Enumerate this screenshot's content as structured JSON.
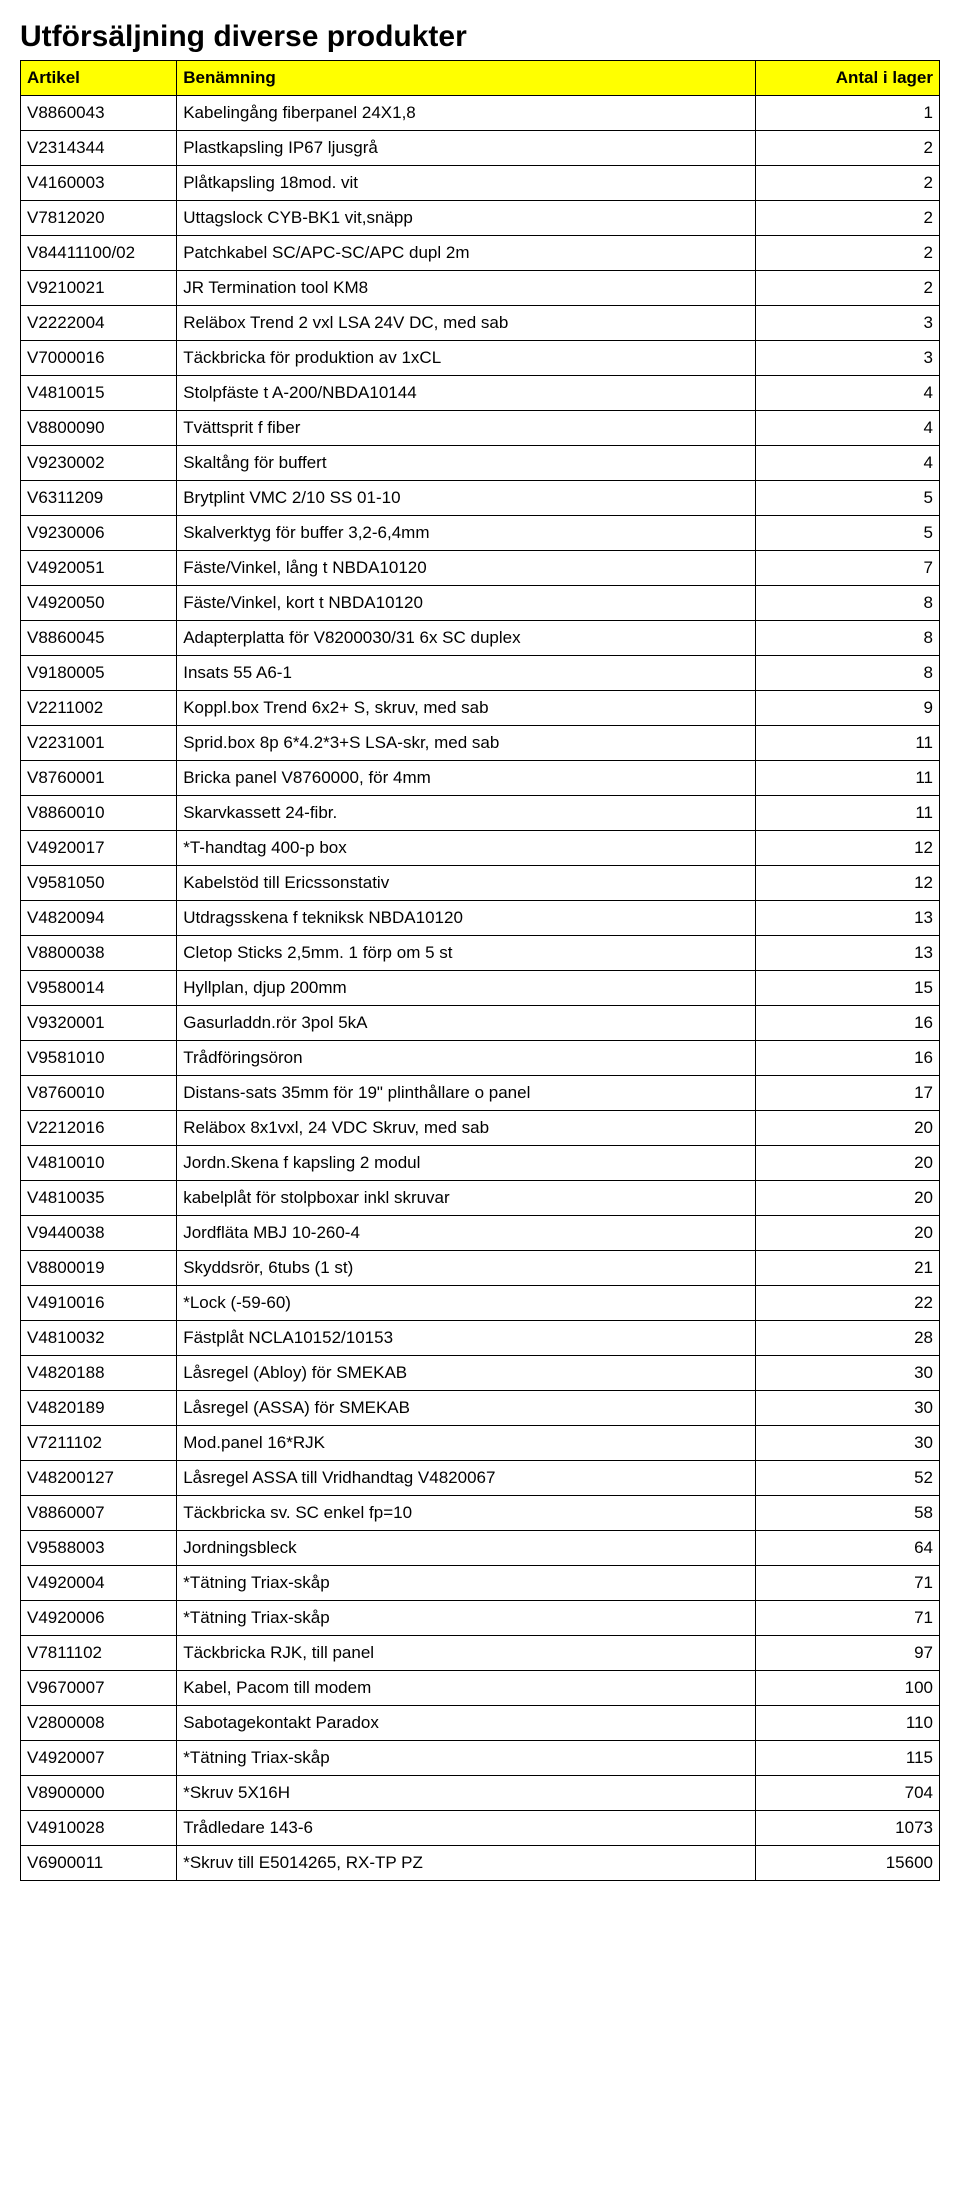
{
  "title": "Utförsäljning diverse produkter",
  "columns": [
    "Artikel",
    "Benämning",
    "Antal i lager"
  ],
  "column_align": [
    "left",
    "left",
    "right"
  ],
  "column_widths_pct": [
    17,
    63,
    20
  ],
  "header_bg": "#ffff00",
  "border_color": "#000000",
  "font_family": "Arial",
  "header_fontsize_pt": 13,
  "cell_fontsize_pt": 13,
  "title_fontsize_pt": 22,
  "rows": [
    [
      "V8860043",
      "Kabelingång fiberpanel 24X1,8",
      "1"
    ],
    [
      "V2314344",
      "Plastkapsling IP67 ljusgrå",
      "2"
    ],
    [
      "V4160003",
      "Plåtkapsling 18mod. vit",
      "2"
    ],
    [
      "V7812020",
      "Uttagslock CYB-BK1 vit,snäpp",
      "2"
    ],
    [
      "V84411100/02",
      "Patchkabel SC/APC-SC/APC dupl 2m",
      "2"
    ],
    [
      "V9210021",
      "JR Termination tool KM8",
      "2"
    ],
    [
      "V2222004",
      "Reläbox Trend 2 vxl LSA 24V DC, med sab",
      "3"
    ],
    [
      "V7000016",
      "Täckbricka för produktion av 1xCL",
      "3"
    ],
    [
      "V4810015",
      "Stolpfäste t A-200/NBDA10144",
      "4"
    ],
    [
      "V8800090",
      "Tvättsprit f fiber",
      "4"
    ],
    [
      "V9230002",
      "Skaltång för buffert",
      "4"
    ],
    [
      "V6311209",
      "Brytplint VMC 2/10 SS 01-10",
      "5"
    ],
    [
      "V9230006",
      "Skalverktyg för buffer 3,2-6,4mm",
      "5"
    ],
    [
      "V4920051",
      "Fäste/Vinkel, lång t NBDA10120",
      "7"
    ],
    [
      "V4920050",
      "Fäste/Vinkel, kort t NBDA10120",
      "8"
    ],
    [
      "V8860045",
      "Adapterplatta för V8200030/31 6x SC duplex",
      "8"
    ],
    [
      "V9180005",
      "Insats 55 A6-1",
      "8"
    ],
    [
      "V2211002",
      "Koppl.box Trend 6x2+ S,  skruv, med sab",
      "9"
    ],
    [
      "V2231001",
      "Sprid.box 8p 6*4.2*3+S LSA-skr, med sab",
      "11"
    ],
    [
      "V8760001",
      "Bricka panel V8760000, för 4mm",
      "11"
    ],
    [
      "V8860010",
      "Skarvkassett  24-fibr.",
      "11"
    ],
    [
      "V4920017",
      "*T-handtag 400-p box",
      "12"
    ],
    [
      "V9581050",
      "Kabelstöd till Ericssonstativ",
      "12"
    ],
    [
      "V4820094",
      "Utdragsskena f tekniksk NBDA10120",
      "13"
    ],
    [
      "V8800038",
      "Cletop Sticks 2,5mm. 1 förp om 5 st",
      "13"
    ],
    [
      "V9580014",
      "Hyllplan, djup 200mm",
      "15"
    ],
    [
      "V9320001",
      "Gasurladdn.rör 3pol 5kA",
      "16"
    ],
    [
      "V9581010",
      "Trådföringsöron",
      "16"
    ],
    [
      "V8760010",
      "Distans-sats 35mm för 19\" plinthållare o panel",
      "17"
    ],
    [
      "V2212016",
      "Reläbox 8x1vxl, 24 VDC Skruv, med sab",
      "20"
    ],
    [
      "V4810010",
      "Jordn.Skena f kapsling 2 modul",
      "20"
    ],
    [
      "V4810035",
      "kabelplåt för stolpboxar inkl skruvar",
      "20"
    ],
    [
      "V9440038",
      "Jordfläta MBJ 10-260-4",
      "20"
    ],
    [
      "V8800019",
      "Skyddsrör, 6tubs (1 st)",
      "21"
    ],
    [
      "V4910016",
      "*Lock (-59-60)",
      "22"
    ],
    [
      "V4810032",
      "Fästplåt NCLA10152/10153",
      "28"
    ],
    [
      "V4820188",
      "Låsregel (Abloy) för SMEKAB",
      "30"
    ],
    [
      "V4820189",
      "Låsregel (ASSA) för SMEKAB",
      "30"
    ],
    [
      "V7211102",
      "Mod.panel 16*RJK",
      "30"
    ],
    [
      "V48200127",
      "Låsregel ASSA till Vridhandtag V4820067",
      "52"
    ],
    [
      "V8860007",
      "Täckbricka sv. SC enkel fp=10",
      "58"
    ],
    [
      "V9588003",
      "Jordningsbleck",
      "64"
    ],
    [
      "V4920004",
      "*Tätning Triax-skåp",
      "71"
    ],
    [
      "V4920006",
      "*Tätning Triax-skåp",
      "71"
    ],
    [
      "V7811102",
      "Täckbricka RJK, till panel",
      "97"
    ],
    [
      "V9670007",
      "Kabel, Pacom till modem",
      "100"
    ],
    [
      "V2800008",
      "Sabotagekontakt Paradox",
      "110"
    ],
    [
      "V4920007",
      "*Tätning Triax-skåp",
      "115"
    ],
    [
      "V8900000",
      "*Skruv 5X16H",
      "704"
    ],
    [
      "V4910028",
      "Trådledare 143-6",
      "1073"
    ],
    [
      "V6900011",
      "*Skruv till  E5014265, RX-TP PZ",
      "15600"
    ]
  ]
}
